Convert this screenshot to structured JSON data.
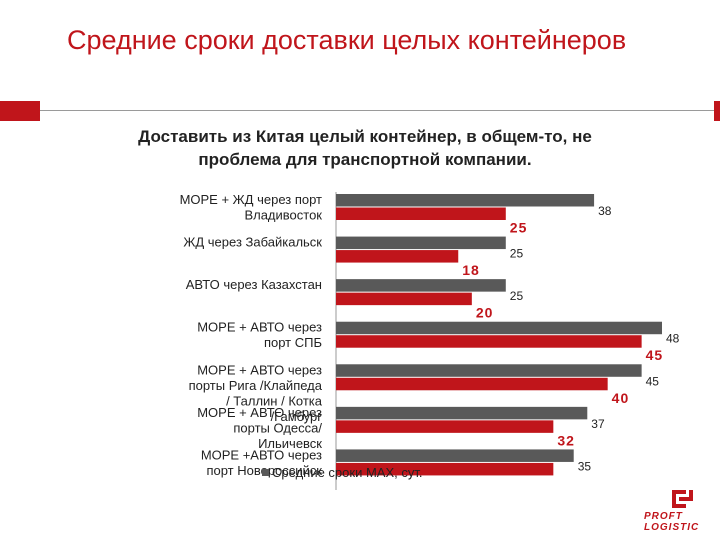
{
  "slide": {
    "title": "Средние сроки доставки целых контейнеров",
    "subtitle": "Доставить из Китая целый контейнер, в общем-то, не проблема для транспортной компании.",
    "logo_text_top": "PROFT",
    "logo_text_bottom": "LOGISTIC"
  },
  "chart_data": {
    "type": "bar",
    "orientation": "horizontal",
    "categories": [
      [
        "МОРЕ + ЖД через порт",
        "Владивосток"
      ],
      [
        "ЖД через Забайкальск"
      ],
      [
        "АВТО через Казахстан"
      ],
      [
        "МОРЕ + АВТО через",
        "порт СПБ"
      ],
      [
        "МОРЕ + АВТО через",
        "порты Рига /Клайпеда",
        "/ Таллин / Котка",
        "/Гамбург"
      ],
      [
        "МОРЕ + АВТО через",
        "порты Одесса/",
        "Ильичевск"
      ],
      [
        "МОРЕ +АВТО через",
        "порт Новороссийск"
      ]
    ],
    "series": [
      {
        "name": "Средние сроки MAX, сут.",
        "color": "#595959",
        "values": [
          38,
          25,
          25,
          48,
          45,
          37,
          35
        ]
      },
      {
        "name": "",
        "color": "#c0151b",
        "values": [
          25,
          18,
          20,
          45,
          40,
          32,
          32
        ]
      }
    ],
    "data_labels": [
      [
        "38",
        "25",
        "25",
        "48",
        "45",
        "37",
        "35"
      ],
      [
        "25",
        "18",
        "20",
        "45",
        "40",
        "32",
        ""
      ]
    ],
    "xlim": [
      0,
      48
    ],
    "grid": false,
    "legend": "bottom"
  }
}
